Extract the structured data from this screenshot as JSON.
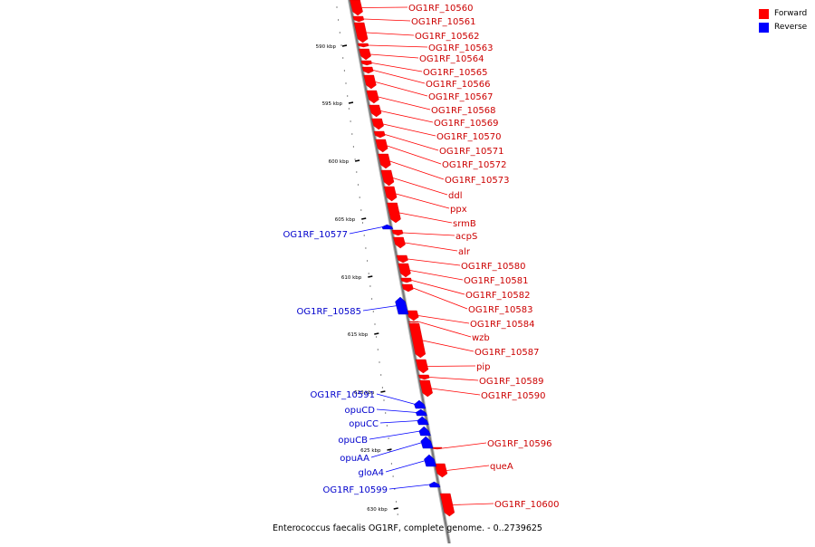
{
  "caption": "Enterococcus faecalis OG1RF, complete genome. - 0..2739625",
  "legend": [
    {
      "label": "Forward",
      "color": "#ff0000"
    },
    {
      "label": "Reverse",
      "color": "#0000ff"
    }
  ],
  "colors": {
    "forward": "#ff0000",
    "reverse": "#0000ff",
    "axis": "#777777"
  },
  "ticks": [
    "590 kbp",
    "595 kbp",
    "600 kbp",
    "605 kbp",
    "610 kbp",
    "615 kbp",
    "620 kbp",
    "625 kbp",
    "630 kbp"
  ],
  "forward_genes": [
    "OG1RF_10560",
    "OG1RF_10561",
    "OG1RF_10562",
    "OG1RF_10563",
    "OG1RF_10564",
    "OG1RF_10565",
    "OG1RF_10566",
    "OG1RF_10567",
    "OG1RF_10568",
    "OG1RF_10569",
    "OG1RF_10570",
    "OG1RF_10571",
    "OG1RF_10572",
    "OG1RF_10573",
    "ddl",
    "ppx",
    "srmB",
    "acpS",
    "alr",
    "OG1RF_10580",
    "OG1RF_10581",
    "OG1RF_10582",
    "OG1RF_10583",
    "OG1RF_10584",
    "wzb",
    "OG1RF_10587",
    "pip",
    "OG1RF_10589",
    "OG1RF_10590",
    "OG1RF_10596",
    "queA",
    "OG1RF_10600"
  ],
  "reverse_genes": [
    "OG1RF_10577",
    "OG1RF_10585",
    "OG1RF_10591",
    "opuCD",
    "opuCC",
    "opuCB",
    "opuAA",
    "gloA4",
    "OG1RF_10599"
  ]
}
